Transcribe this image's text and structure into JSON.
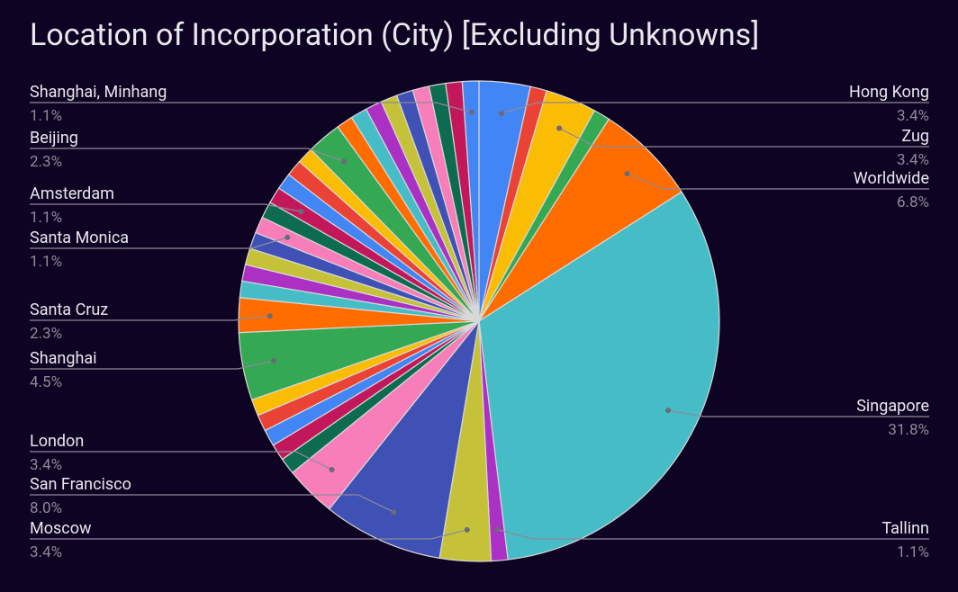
{
  "chart_data": {
    "type": "pie",
    "title": "Location of Incorporation (City) [Excluding Unknowns]",
    "categories": [
      "Hong Kong",
      null,
      "Zug",
      null,
      "Worldwide",
      "Singapore",
      "Tallinn",
      "Moscow",
      "San Francisco",
      "London",
      null,
      null,
      null,
      null,
      null,
      "Shanghai",
      "Santa Cruz",
      null,
      null,
      null,
      null,
      "Santa Monica",
      null,
      "Amsterdam",
      null,
      null,
      null,
      "Beijing",
      null,
      null,
      null,
      null,
      null,
      null,
      null,
      null,
      "Shanghai, Minhang"
    ],
    "values": [
      3.4,
      1.1,
      3.4,
      1.1,
      6.8,
      31.8,
      1.1,
      3.4,
      8.0,
      3.4,
      1.1,
      1.1,
      1.1,
      1.1,
      1.1,
      4.5,
      2.3,
      1.1,
      1.1,
      1.1,
      1.1,
      1.1,
      1.1,
      1.1,
      1.1,
      1.1,
      1.1,
      2.3,
      1.1,
      1.1,
      1.1,
      1.1,
      1.1,
      1.1,
      1.1,
      1.1,
      1.1
    ],
    "value_labels": [
      "3.4%",
      null,
      "3.4%",
      null,
      "6.8%",
      "31.8%",
      "1.1%",
      "3.4%",
      "8.0%",
      "3.4%",
      null,
      null,
      null,
      null,
      null,
      "4.5%",
      "2.3%",
      null,
      null,
      null,
      null,
      "1.1%",
      null,
      "1.1%",
      null,
      null,
      null,
      "2.3%",
      null,
      null,
      null,
      null,
      null,
      null,
      null,
      null,
      "1.1%"
    ],
    "colors": [
      "#4285f4",
      "#ea4335",
      "#fbbc04",
      "#34a853",
      "#ff6d01",
      "#46bdc6",
      "#ab30c4",
      "#c5c23a",
      "#3f51b5",
      "#f77eb9",
      "#0d6b4f",
      "#c2185b"
    ]
  }
}
